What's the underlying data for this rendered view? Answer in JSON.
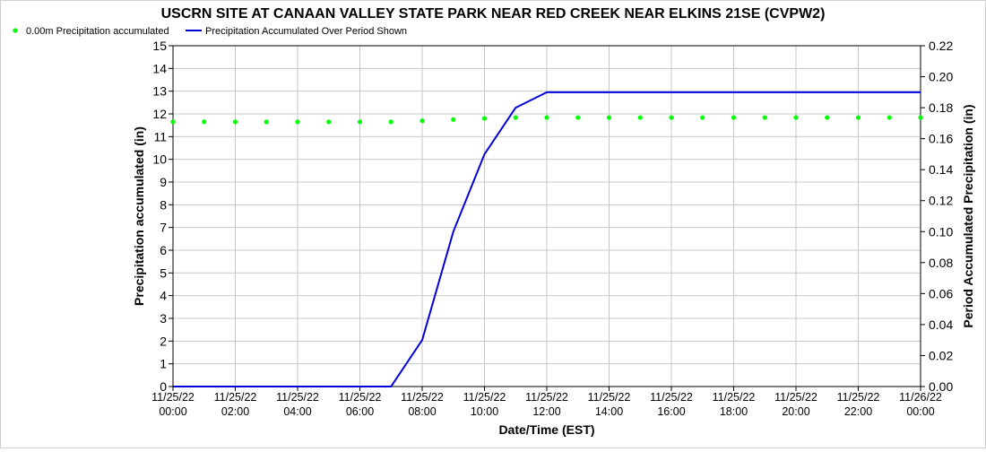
{
  "chart_data": {
    "type": "line",
    "title": "USCRN SITE AT CANAAN VALLEY STATE PARK NEAR RED CREEK NEAR ELKINS 21SE (CVPW2)",
    "xlabel": "Date/Time (EST)",
    "ylabel_left": "Precipitation accumulated (in)",
    "ylabel_right": "Period Accumulated Precipitation (in)",
    "ylim_left": [
      0,
      15
    ],
    "ylim_right": [
      0,
      0.22
    ],
    "grid": true,
    "legend_placement": "top-left",
    "x_hours": [
      0,
      2,
      4,
      6,
      8,
      10,
      12,
      14,
      16,
      18,
      20,
      22,
      24
    ],
    "x_tick_labels": [
      [
        "11/25/22",
        "00:00"
      ],
      [
        "11/25/22",
        "02:00"
      ],
      [
        "11/25/22",
        "04:00"
      ],
      [
        "11/25/22",
        "06:00"
      ],
      [
        "11/25/22",
        "08:00"
      ],
      [
        "11/25/22",
        "10:00"
      ],
      [
        "11/25/22",
        "12:00"
      ],
      [
        "11/25/22",
        "14:00"
      ],
      [
        "11/25/22",
        "16:00"
      ],
      [
        "11/25/22",
        "18:00"
      ],
      [
        "11/25/22",
        "20:00"
      ],
      [
        "11/25/22",
        "22:00"
      ],
      [
        "11/26/22",
        "00:00"
      ]
    ],
    "y_left_ticks": [
      "0",
      "1",
      "2",
      "3",
      "4",
      "5",
      "6",
      "7",
      "8",
      "9",
      "10",
      "11",
      "12",
      "13",
      "14",
      "15"
    ],
    "y_right_ticks": [
      "0.00",
      "0.02",
      "0.04",
      "0.06",
      "0.08",
      "0.10",
      "0.12",
      "0.14",
      "0.16",
      "0.18",
      "0.20",
      "0.22"
    ],
    "series": [
      {
        "name": "0.00m Precipitation accumulated",
        "type": "scatter",
        "axis": "left",
        "color": "#00ff00",
        "x": [
          0,
          1,
          2,
          3,
          4,
          5,
          6,
          7,
          8,
          9,
          10,
          11,
          12,
          13,
          14,
          15,
          16,
          17,
          18,
          19,
          20,
          21,
          22,
          23,
          24
        ],
        "y": [
          11.65,
          11.65,
          11.65,
          11.65,
          11.65,
          11.65,
          11.65,
          11.65,
          11.7,
          11.75,
          11.8,
          11.84,
          11.84,
          11.84,
          11.84,
          11.84,
          11.84,
          11.84,
          11.84,
          11.84,
          11.84,
          11.84,
          11.84,
          11.84,
          11.84
        ]
      },
      {
        "name": "Precipitation Accumulated Over Period Shown",
        "type": "line",
        "axis": "right",
        "color": "#0000dd",
        "x": [
          0,
          7,
          8,
          9,
          10,
          11,
          12,
          24
        ],
        "y": [
          0,
          0,
          0.03,
          0.1,
          0.15,
          0.18,
          0.19,
          0.19
        ]
      }
    ]
  }
}
